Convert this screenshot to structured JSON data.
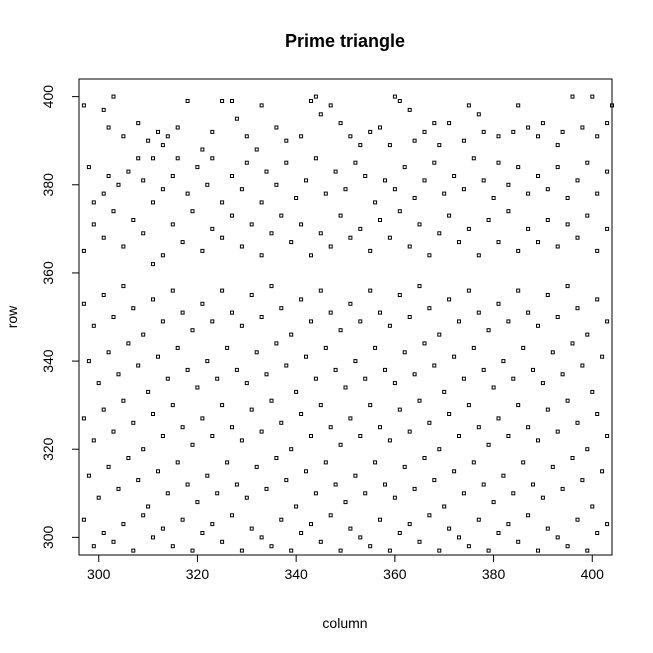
{
  "chart_data": {
    "type": "scatter",
    "title": "Prime triangle",
    "xlabel": "column",
    "ylabel": "row",
    "xlim": [
      296,
      404
    ],
    "ylim": [
      296,
      404
    ],
    "xticks": [
      300,
      320,
      340,
      360,
      380,
      400
    ],
    "yticks": [
      300,
      320,
      340,
      360,
      380,
      400
    ],
    "grid": false,
    "marker": "open-square",
    "marker_color": "#000000",
    "points": [
      [
        297,
        398
      ],
      [
        301,
        397
      ],
      [
        303,
        400
      ],
      [
        302,
        393
      ],
      [
        305,
        391
      ],
      [
        308,
        394
      ],
      [
        310,
        390
      ],
      [
        311,
        386
      ],
      [
        312,
        392
      ],
      [
        313,
        389
      ],
      [
        314,
        391
      ],
      [
        316,
        393
      ],
      [
        318,
        399
      ],
      [
        321,
        388
      ],
      [
        323,
        392
      ],
      [
        325,
        399
      ],
      [
        327,
        399
      ],
      [
        328,
        395
      ],
      [
        330,
        391
      ],
      [
        332,
        388
      ],
      [
        333,
        398
      ],
      [
        336,
        393
      ],
      [
        338,
        390
      ],
      [
        341,
        391
      ],
      [
        343,
        399
      ],
      [
        344,
        400
      ],
      [
        345,
        396
      ],
      [
        347,
        398
      ],
      [
        349,
        394
      ],
      [
        351,
        391
      ],
      [
        353,
        389
      ],
      [
        355,
        392
      ],
      [
        357,
        393
      ],
      [
        359,
        389
      ],
      [
        360,
        400
      ],
      [
        361,
        399
      ],
      [
        363,
        397
      ],
      [
        364,
        390
      ],
      [
        366,
        392
      ],
      [
        368,
        394
      ],
      [
        369,
        389
      ],
      [
        371,
        394
      ],
      [
        374,
        390
      ],
      [
        375,
        398
      ],
      [
        377,
        396
      ],
      [
        378,
        392
      ],
      [
        381,
        391
      ],
      [
        384,
        392
      ],
      [
        385,
        398
      ],
      [
        387,
        393
      ],
      [
        389,
        391
      ],
      [
        390,
        394
      ],
      [
        393,
        389
      ],
      [
        394,
        392
      ],
      [
        396,
        400
      ],
      [
        398,
        393
      ],
      [
        400,
        400
      ],
      [
        401,
        391
      ],
      [
        403,
        394
      ],
      [
        404,
        398
      ],
      [
        298,
        384
      ],
      [
        299,
        376
      ],
      [
        301,
        378
      ],
      [
        302,
        382
      ],
      [
        304,
        380
      ],
      [
        306,
        383
      ],
      [
        308,
        386
      ],
      [
        309,
        381
      ],
      [
        311,
        376
      ],
      [
        313,
        379
      ],
      [
        315,
        382
      ],
      [
        316,
        386
      ],
      [
        318,
        378
      ],
      [
        320,
        384
      ],
      [
        322,
        380
      ],
      [
        323,
        386
      ],
      [
        325,
        376
      ],
      [
        327,
        382
      ],
      [
        329,
        379
      ],
      [
        330,
        385
      ],
      [
        333,
        376
      ],
      [
        334,
        383
      ],
      [
        336,
        380
      ],
      [
        338,
        385
      ],
      [
        340,
        377
      ],
      [
        342,
        381
      ],
      [
        344,
        386
      ],
      [
        346,
        378
      ],
      [
        348,
        383
      ],
      [
        350,
        379
      ],
      [
        352,
        385
      ],
      [
        354,
        382
      ],
      [
        356,
        376
      ],
      [
        358,
        381
      ],
      [
        360,
        379
      ],
      [
        362,
        384
      ],
      [
        364,
        377
      ],
      [
        366,
        381
      ],
      [
        368,
        385
      ],
      [
        370,
        378
      ],
      [
        372,
        382
      ],
      [
        374,
        379
      ],
      [
        376,
        386
      ],
      [
        378,
        381
      ],
      [
        380,
        377
      ],
      [
        381,
        385
      ],
      [
        383,
        380
      ],
      [
        385,
        384
      ],
      [
        387,
        378
      ],
      [
        389,
        382
      ],
      [
        391,
        379
      ],
      [
        393,
        384
      ],
      [
        395,
        377
      ],
      [
        397,
        381
      ],
      [
        399,
        385
      ],
      [
        401,
        378
      ],
      [
        403,
        383
      ],
      [
        297,
        365
      ],
      [
        299,
        371
      ],
      [
        301,
        368
      ],
      [
        303,
        374
      ],
      [
        305,
        366
      ],
      [
        307,
        372
      ],
      [
        309,
        369
      ],
      [
        311,
        362
      ],
      [
        313,
        364
      ],
      [
        315,
        371
      ],
      [
        317,
        367
      ],
      [
        319,
        374
      ],
      [
        321,
        365
      ],
      [
        323,
        370
      ],
      [
        325,
        368
      ],
      [
        327,
        373
      ],
      [
        329,
        366
      ],
      [
        331,
        371
      ],
      [
        333,
        364
      ],
      [
        335,
        369
      ],
      [
        337,
        373
      ],
      [
        339,
        367
      ],
      [
        341,
        371
      ],
      [
        343,
        364
      ],
      [
        345,
        369
      ],
      [
        347,
        366
      ],
      [
        349,
        373
      ],
      [
        351,
        368
      ],
      [
        353,
        370
      ],
      [
        355,
        365
      ],
      [
        357,
        372
      ],
      [
        359,
        368
      ],
      [
        361,
        374
      ],
      [
        363,
        366
      ],
      [
        365,
        371
      ],
      [
        367,
        364
      ],
      [
        369,
        369
      ],
      [
        371,
        373
      ],
      [
        373,
        367
      ],
      [
        375,
        370
      ],
      [
        377,
        364
      ],
      [
        379,
        372
      ],
      [
        381,
        367
      ],
      [
        383,
        374
      ],
      [
        385,
        365
      ],
      [
        387,
        370
      ],
      [
        389,
        367
      ],
      [
        391,
        372
      ],
      [
        393,
        366
      ],
      [
        395,
        371
      ],
      [
        397,
        368
      ],
      [
        399,
        373
      ],
      [
        401,
        365
      ],
      [
        403,
        370
      ],
      [
        297,
        353
      ],
      [
        299,
        348
      ],
      [
        301,
        355
      ],
      [
        303,
        350
      ],
      [
        305,
        357
      ],
      [
        307,
        352
      ],
      [
        309,
        346
      ],
      [
        311,
        354
      ],
      [
        313,
        349
      ],
      [
        315,
        356
      ],
      [
        317,
        351
      ],
      [
        319,
        347
      ],
      [
        321,
        353
      ],
      [
        323,
        349
      ],
      [
        325,
        356
      ],
      [
        327,
        351
      ],
      [
        329,
        348
      ],
      [
        331,
        355
      ],
      [
        333,
        350
      ],
      [
        335,
        357
      ],
      [
        337,
        352
      ],
      [
        339,
        346
      ],
      [
        341,
        354
      ],
      [
        343,
        349
      ],
      [
        345,
        356
      ],
      [
        347,
        351
      ],
      [
        349,
        347
      ],
      [
        351,
        353
      ],
      [
        353,
        349
      ],
      [
        355,
        356
      ],
      [
        357,
        351
      ],
      [
        359,
        348
      ],
      [
        361,
        355
      ],
      [
        363,
        350
      ],
      [
        365,
        357
      ],
      [
        367,
        352
      ],
      [
        369,
        346
      ],
      [
        371,
        354
      ],
      [
        373,
        349
      ],
      [
        375,
        356
      ],
      [
        377,
        351
      ],
      [
        379,
        347
      ],
      [
        381,
        353
      ],
      [
        383,
        349
      ],
      [
        385,
        356
      ],
      [
        387,
        351
      ],
      [
        389,
        348
      ],
      [
        391,
        355
      ],
      [
        393,
        350
      ],
      [
        395,
        357
      ],
      [
        397,
        352
      ],
      [
        399,
        346
      ],
      [
        401,
        354
      ],
      [
        403,
        349
      ],
      [
        298,
        340
      ],
      [
        300,
        335
      ],
      [
        302,
        342
      ],
      [
        304,
        337
      ],
      [
        306,
        344
      ],
      [
        308,
        339
      ],
      [
        310,
        333
      ],
      [
        312,
        341
      ],
      [
        314,
        336
      ],
      [
        316,
        343
      ],
      [
        318,
        338
      ],
      [
        320,
        334
      ],
      [
        322,
        340
      ],
      [
        324,
        336
      ],
      [
        326,
        343
      ],
      [
        328,
        338
      ],
      [
        330,
        335
      ],
      [
        332,
        342
      ],
      [
        334,
        337
      ],
      [
        336,
        344
      ],
      [
        338,
        339
      ],
      [
        340,
        333
      ],
      [
        342,
        341
      ],
      [
        344,
        336
      ],
      [
        346,
        343
      ],
      [
        348,
        338
      ],
      [
        350,
        334
      ],
      [
        352,
        340
      ],
      [
        354,
        336
      ],
      [
        356,
        343
      ],
      [
        358,
        338
      ],
      [
        360,
        335
      ],
      [
        362,
        342
      ],
      [
        364,
        337
      ],
      [
        366,
        344
      ],
      [
        368,
        339
      ],
      [
        370,
        333
      ],
      [
        372,
        341
      ],
      [
        374,
        336
      ],
      [
        376,
        343
      ],
      [
        378,
        338
      ],
      [
        380,
        334
      ],
      [
        382,
        340
      ],
      [
        384,
        336
      ],
      [
        386,
        343
      ],
      [
        388,
        338
      ],
      [
        390,
        335
      ],
      [
        392,
        342
      ],
      [
        394,
        337
      ],
      [
        396,
        344
      ],
      [
        398,
        339
      ],
      [
        400,
        333
      ],
      [
        402,
        341
      ],
      [
        297,
        327
      ],
      [
        299,
        322
      ],
      [
        301,
        329
      ],
      [
        303,
        324
      ],
      [
        305,
        331
      ],
      [
        307,
        326
      ],
      [
        309,
        320
      ],
      [
        311,
        328
      ],
      [
        313,
        323
      ],
      [
        315,
        330
      ],
      [
        317,
        325
      ],
      [
        319,
        321
      ],
      [
        321,
        327
      ],
      [
        323,
        323
      ],
      [
        325,
        330
      ],
      [
        327,
        325
      ],
      [
        329,
        322
      ],
      [
        331,
        329
      ],
      [
        333,
        324
      ],
      [
        335,
        331
      ],
      [
        337,
        326
      ],
      [
        339,
        320
      ],
      [
        341,
        328
      ],
      [
        343,
        323
      ],
      [
        345,
        330
      ],
      [
        347,
        325
      ],
      [
        349,
        321
      ],
      [
        351,
        327
      ],
      [
        353,
        323
      ],
      [
        355,
        330
      ],
      [
        357,
        325
      ],
      [
        359,
        322
      ],
      [
        361,
        329
      ],
      [
        363,
        324
      ],
      [
        365,
        331
      ],
      [
        367,
        326
      ],
      [
        369,
        320
      ],
      [
        371,
        328
      ],
      [
        373,
        323
      ],
      [
        375,
        330
      ],
      [
        377,
        325
      ],
      [
        379,
        321
      ],
      [
        381,
        327
      ],
      [
        383,
        323
      ],
      [
        385,
        330
      ],
      [
        387,
        325
      ],
      [
        389,
        322
      ],
      [
        391,
        329
      ],
      [
        393,
        324
      ],
      [
        395,
        331
      ],
      [
        397,
        326
      ],
      [
        399,
        320
      ],
      [
        401,
        328
      ],
      [
        403,
        323
      ],
      [
        298,
        314
      ],
      [
        300,
        309
      ],
      [
        302,
        316
      ],
      [
        304,
        311
      ],
      [
        306,
        318
      ],
      [
        308,
        313
      ],
      [
        310,
        307
      ],
      [
        312,
        315
      ],
      [
        314,
        310
      ],
      [
        316,
        317
      ],
      [
        318,
        312
      ],
      [
        320,
        308
      ],
      [
        322,
        314
      ],
      [
        324,
        310
      ],
      [
        326,
        317
      ],
      [
        328,
        312
      ],
      [
        330,
        309
      ],
      [
        332,
        316
      ],
      [
        334,
        311
      ],
      [
        336,
        318
      ],
      [
        338,
        313
      ],
      [
        340,
        307
      ],
      [
        342,
        315
      ],
      [
        344,
        310
      ],
      [
        346,
        317
      ],
      [
        348,
        312
      ],
      [
        350,
        308
      ],
      [
        352,
        314
      ],
      [
        354,
        310
      ],
      [
        356,
        317
      ],
      [
        358,
        312
      ],
      [
        360,
        309
      ],
      [
        362,
        316
      ],
      [
        364,
        311
      ],
      [
        366,
        318
      ],
      [
        368,
        313
      ],
      [
        370,
        307
      ],
      [
        372,
        315
      ],
      [
        374,
        310
      ],
      [
        376,
        317
      ],
      [
        378,
        312
      ],
      [
        380,
        308
      ],
      [
        382,
        314
      ],
      [
        384,
        310
      ],
      [
        386,
        317
      ],
      [
        388,
        312
      ],
      [
        390,
        309
      ],
      [
        392,
        316
      ],
      [
        394,
        311
      ],
      [
        396,
        318
      ],
      [
        398,
        313
      ],
      [
        400,
        307
      ],
      [
        402,
        315
      ],
      [
        297,
        304
      ],
      [
        299,
        298
      ],
      [
        301,
        301
      ],
      [
        303,
        299
      ],
      [
        305,
        303
      ],
      [
        307,
        297
      ],
      [
        309,
        305
      ],
      [
        311,
        300
      ],
      [
        313,
        302
      ],
      [
        315,
        298
      ],
      [
        317,
        304
      ],
      [
        319,
        297
      ],
      [
        321,
        301
      ],
      [
        323,
        303
      ],
      [
        325,
        299
      ],
      [
        327,
        305
      ],
      [
        329,
        297
      ],
      [
        331,
        302
      ],
      [
        333,
        300
      ],
      [
        335,
        298
      ],
      [
        337,
        304
      ],
      [
        339,
        297
      ],
      [
        341,
        301
      ],
      [
        343,
        303
      ],
      [
        345,
        299
      ],
      [
        347,
        305
      ],
      [
        349,
        297
      ],
      [
        351,
        302
      ],
      [
        353,
        300
      ],
      [
        355,
        298
      ],
      [
        357,
        304
      ],
      [
        359,
        297
      ],
      [
        361,
        301
      ],
      [
        363,
        303
      ],
      [
        365,
        299
      ],
      [
        367,
        305
      ],
      [
        369,
        297
      ],
      [
        371,
        302
      ],
      [
        373,
        300
      ],
      [
        375,
        298
      ],
      [
        377,
        304
      ],
      [
        379,
        297
      ],
      [
        381,
        301
      ],
      [
        383,
        303
      ],
      [
        385,
        299
      ],
      [
        387,
        305
      ],
      [
        389,
        297
      ],
      [
        391,
        302
      ],
      [
        393,
        300
      ],
      [
        395,
        298
      ],
      [
        397,
        304
      ],
      [
        399,
        297
      ],
      [
        401,
        301
      ],
      [
        403,
        303
      ]
    ]
  }
}
